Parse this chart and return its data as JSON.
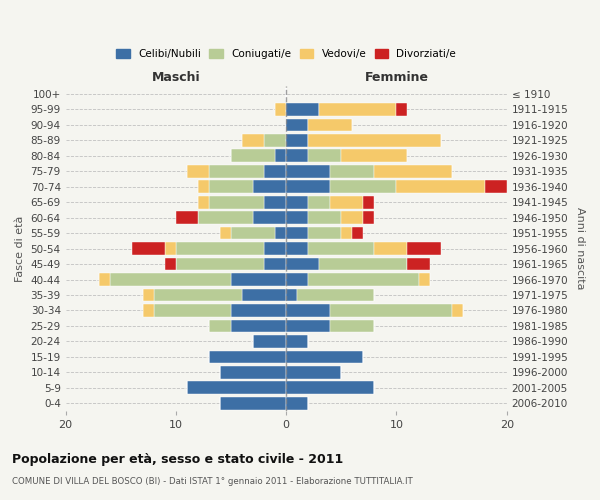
{
  "age_groups": [
    "0-4",
    "5-9",
    "10-14",
    "15-19",
    "20-24",
    "25-29",
    "30-34",
    "35-39",
    "40-44",
    "45-49",
    "50-54",
    "55-59",
    "60-64",
    "65-69",
    "70-74",
    "75-79",
    "80-84",
    "85-89",
    "90-94",
    "95-99",
    "100+"
  ],
  "birth_years": [
    "2006-2010",
    "2001-2005",
    "1996-2000",
    "1991-1995",
    "1986-1990",
    "1981-1985",
    "1976-1980",
    "1971-1975",
    "1966-1970",
    "1961-1965",
    "1956-1960",
    "1951-1955",
    "1946-1950",
    "1941-1945",
    "1936-1940",
    "1931-1935",
    "1926-1930",
    "1921-1925",
    "1916-1920",
    "1911-1915",
    "≤ 1910"
  ],
  "colors": {
    "celibi": "#3d6fa5",
    "coniugati": "#b8cc96",
    "vedovi": "#f5c96a",
    "divorziati": "#cc2222"
  },
  "maschi": {
    "celibi": [
      6,
      9,
      6,
      7,
      3,
      5,
      5,
      4,
      5,
      2,
      2,
      1,
      3,
      2,
      3,
      2,
      1,
      0,
      0,
      0,
      0
    ],
    "coniugati": [
      0,
      0,
      0,
      0,
      0,
      2,
      7,
      8,
      11,
      8,
      8,
      4,
      5,
      5,
      4,
      5,
      4,
      2,
      0,
      0,
      0
    ],
    "vedovi": [
      0,
      0,
      0,
      0,
      0,
      0,
      1,
      1,
      1,
      0,
      1,
      1,
      0,
      1,
      1,
      2,
      0,
      2,
      0,
      1,
      0
    ],
    "divorziati": [
      0,
      0,
      0,
      0,
      0,
      0,
      0,
      0,
      0,
      1,
      3,
      0,
      2,
      0,
      0,
      0,
      0,
      0,
      0,
      0,
      0
    ]
  },
  "femmine": {
    "celibi": [
      2,
      8,
      5,
      7,
      2,
      4,
      4,
      1,
      2,
      3,
      2,
      2,
      2,
      2,
      4,
      4,
      2,
      2,
      2,
      3,
      0
    ],
    "coniugati": [
      0,
      0,
      0,
      0,
      0,
      4,
      11,
      7,
      10,
      8,
      6,
      3,
      3,
      2,
      6,
      4,
      3,
      0,
      0,
      0,
      0
    ],
    "vedovi": [
      0,
      0,
      0,
      0,
      0,
      0,
      1,
      0,
      1,
      0,
      3,
      1,
      2,
      3,
      8,
      7,
      6,
      12,
      4,
      7,
      0
    ],
    "divorziati": [
      0,
      0,
      0,
      0,
      0,
      0,
      0,
      0,
      0,
      2,
      3,
      1,
      1,
      1,
      2,
      0,
      0,
      0,
      0,
      1,
      0
    ]
  },
  "xlim": 20,
  "title": "Popolazione per età, sesso e stato civile - 2011",
  "subtitle": "COMUNE DI VILLA DEL BOSCO (BI) - Dati ISTAT 1° gennaio 2011 - Elaborazione TUTTITALIA.IT",
  "ylabel_left": "Fasce di età",
  "ylabel_right": "Anni di nascita",
  "xlabel_maschi": "Maschi",
  "xlabel_femmine": "Femmine",
  "legend_labels": [
    "Celibi/Nubili",
    "Coniugati/e",
    "Vedovi/e",
    "Divorziati/e"
  ],
  "background_color": "#f5f5f0",
  "bar_height": 0.82
}
